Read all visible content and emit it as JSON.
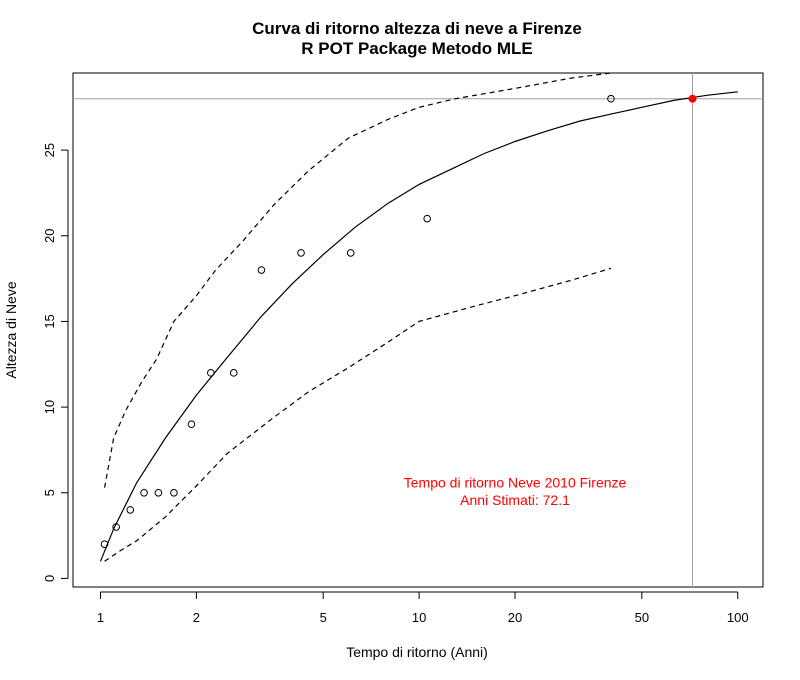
{
  "chart_data": {
    "type": "line",
    "title": "Curva di ritorno altezza di neve a Firenze",
    "subtitle": "R POT Package Metodo MLE",
    "xlabel": "Tempo di ritorno (Anni)",
    "ylabel": "Altezza di Neve",
    "x_scale": "log",
    "xlim": [
      0.82,
      120
    ],
    "ylim": [
      -0.5,
      29.5
    ],
    "x_ticks": [
      1,
      2,
      5,
      10,
      20,
      50,
      100
    ],
    "y_ticks": [
      0,
      5,
      10,
      15,
      20,
      25
    ],
    "grid": false,
    "series": [
      {
        "style": "solid",
        "color": "#000000",
        "x": [
          1,
          1.1,
          1.3,
          1.6,
          2,
          2.5,
          3.2,
          4,
          5,
          6.3,
          8,
          10,
          13,
          16,
          20,
          25,
          32,
          40,
          50,
          63,
          80,
          100
        ],
        "y": [
          1,
          2.9,
          5.6,
          8.2,
          10.7,
          12.9,
          15.3,
          17.2,
          18.9,
          20.5,
          21.9,
          23.0,
          24.0,
          24.8,
          25.5,
          26.1,
          26.7,
          27.1,
          27.5,
          27.9,
          28.2,
          28.4
        ]
      },
      {
        "style": "dashed",
        "color": "#000000",
        "x": [
          1.03,
          1.1,
          1.2,
          1.35,
          1.5,
          1.7,
          2,
          2.3,
          2.8,
          3.5,
          4.5,
          6,
          8,
          10,
          13,
          20,
          30,
          40
        ],
        "y": [
          5.3,
          8.2,
          9.8,
          11.5,
          12.8,
          15,
          16.5,
          18,
          19.7,
          21.8,
          23.8,
          25.7,
          26.8,
          27.5,
          28,
          28.6,
          29.2,
          29.5
        ]
      },
      {
        "style": "dashed",
        "color": "#000000",
        "x": [
          1.03,
          1.15,
          1.3,
          1.6,
          2,
          2.5,
          3.5,
          4.5,
          6,
          8,
          10,
          15,
          20,
          30,
          40
        ],
        "y": [
          1.0,
          1.6,
          2.2,
          3.6,
          5.4,
          7.3,
          9.4,
          10.9,
          12.3,
          13.8,
          15,
          15.9,
          16.5,
          17.4,
          18.1
        ]
      },
      {
        "type": "scatter",
        "marker": "open-circle",
        "color": "#000000",
        "x": [
          1.03,
          1.12,
          1.24,
          1.37,
          1.52,
          1.7,
          1.93,
          2.22,
          2.62,
          3.2,
          4.26,
          6.1,
          10.6,
          40
        ],
        "y": [
          2,
          3,
          4,
          5,
          5,
          5,
          9,
          12,
          12,
          18,
          19,
          19,
          21,
          28
        ]
      },
      {
        "type": "scatter",
        "marker": "filled-circle",
        "color": "#ff0000",
        "x": [
          72.1
        ],
        "y": [
          28
        ]
      }
    ],
    "reference_lines": {
      "color": "#a0a0a0",
      "horizontal_y": 28,
      "vertical_x": 72.1
    },
    "annotation": {
      "color": "#ff0000",
      "line1": "Tempo di ritorno Neve 2010 Firenze",
      "line2": "Anni Stimati: 72.1",
      "x": 20,
      "y_line1": 5.3,
      "y_line2": 4.3
    }
  }
}
